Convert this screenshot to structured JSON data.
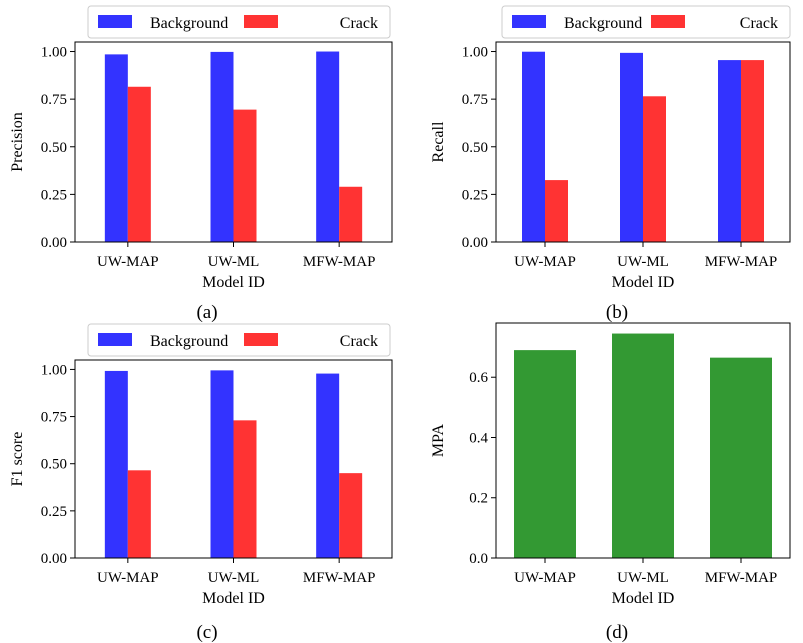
{
  "chart_data": [
    {
      "type": "bar",
      "caption": "(a)",
      "categories": [
        "UW-MAP",
        "UW-ML",
        "MFW-MAP"
      ],
      "series": [
        {
          "name": "Background",
          "values": [
            0.985,
            0.998,
            1.0
          ],
          "color": "#3333ff"
        },
        {
          "name": "Crack",
          "values": [
            0.815,
            0.695,
            0.29
          ],
          "color": "#ff3333"
        }
      ],
      "xlabel": "Model ID",
      "ylabel": "Precision",
      "ylim": [
        0,
        1.05
      ],
      "yticks": [
        0.0,
        0.25,
        0.5,
        0.75,
        1.0
      ],
      "ytick_labels": [
        "0.00",
        "0.25",
        "0.50",
        "0.75",
        "1.00"
      ],
      "legend": "above",
      "grid": false
    },
    {
      "type": "bar",
      "caption": "(b)",
      "categories": [
        "UW-MAP",
        "UW-ML",
        "MFW-MAP"
      ],
      "series": [
        {
          "name": "Background",
          "values": [
            0.999,
            0.993,
            0.955
          ],
          "color": "#3333ff"
        },
        {
          "name": "Crack",
          "values": [
            0.325,
            0.765,
            0.955
          ],
          "color": "#ff3333"
        }
      ],
      "xlabel": "Model ID",
      "ylabel": "Recall",
      "ylim": [
        0,
        1.05
      ],
      "yticks": [
        0.0,
        0.25,
        0.5,
        0.75,
        1.0
      ],
      "ytick_labels": [
        "0.00",
        "0.25",
        "0.50",
        "0.75",
        "1.00"
      ],
      "legend": "above",
      "grid": false
    },
    {
      "type": "bar",
      "caption": "(c)",
      "categories": [
        "UW-MAP",
        "UW-ML",
        "MFW-MAP"
      ],
      "series": [
        {
          "name": "Background",
          "values": [
            0.992,
            0.995,
            0.978
          ],
          "color": "#3333ff"
        },
        {
          "name": "Crack",
          "values": [
            0.465,
            0.73,
            0.45
          ],
          "color": "#ff3333"
        }
      ],
      "xlabel": "Model ID",
      "ylabel": "F1 score",
      "ylim": [
        0,
        1.05
      ],
      "yticks": [
        0.0,
        0.25,
        0.5,
        0.75,
        1.0
      ],
      "ytick_labels": [
        "0.00",
        "0.25",
        "0.50",
        "0.75",
        "1.00"
      ],
      "legend": "above",
      "grid": false
    },
    {
      "type": "bar",
      "caption": "(d)",
      "categories": [
        "UW-MAP",
        "UW-ML",
        "MFW-MAP"
      ],
      "series": [
        {
          "values": [
            0.69,
            0.745,
            0.665
          ],
          "color": "#339933"
        }
      ],
      "xlabel": "Model ID",
      "ylabel": "MPA",
      "ylim": [
        0,
        0.78
      ],
      "yticks": [
        0.0,
        0.2,
        0.4,
        0.6
      ],
      "ytick_labels": [
        "0.0",
        "0.2",
        "0.4",
        "0.6"
      ],
      "grid": false
    }
  ]
}
